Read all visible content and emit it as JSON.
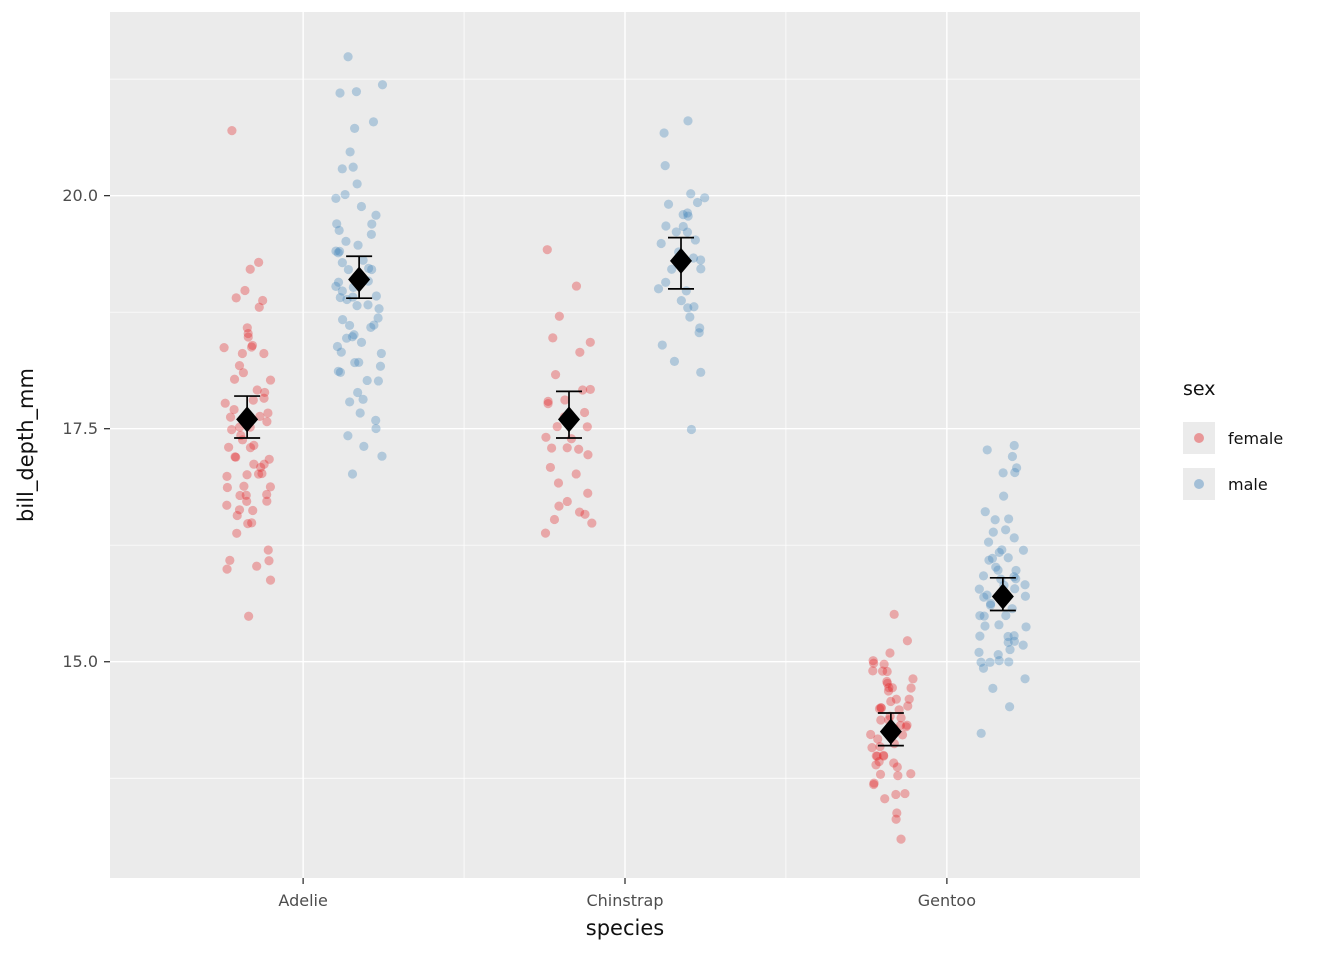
{
  "chart": {
    "ylabel": "bill_depth_mm",
    "xlabel": "species",
    "legend_title": "sex"
  },
  "chart_data": {
    "type": "scatter",
    "title": "",
    "xlabel": "species",
    "ylabel": "bill_depth_mm",
    "categories": [
      "Adelie",
      "Chinstrap",
      "Gentoo"
    ],
    "y_ticks": [
      15.0,
      17.5,
      20.0
    ],
    "y_tick_labels": [
      "15.0",
      "17.5",
      "20.0"
    ],
    "y_minor_ticks": [
      13.75,
      16.25,
      18.75,
      21.25
    ],
    "ylim": [
      12.68,
      21.97
    ],
    "grid": true,
    "panel_background": "#EBEBEB",
    "grid_color": "#FFFFFF",
    "tick_label_color": "#4D4D4D",
    "tick_mark_color": "#333333",
    "point_opacity": 0.32,
    "legend": {
      "title": "sex",
      "position": "right",
      "entries": [
        {
          "label": "female",
          "color": "#E41A1C"
        },
        {
          "label": "male",
          "color": "#377EB8"
        }
      ]
    },
    "colors": {
      "female": "#E41A1C",
      "male": "#377EB8"
    },
    "groups": [
      {
        "species": "Adelie",
        "sex": "female",
        "values": [
          20.7,
          19.3,
          19.2,
          19.0,
          18.9,
          18.9,
          18.8,
          18.6,
          18.5,
          18.5,
          18.4,
          18.4,
          18.4,
          18.3,
          18.3,
          18.2,
          18.1,
          18.0,
          18.0,
          17.9,
          17.9,
          17.8,
          17.8,
          17.8,
          17.7,
          17.7,
          17.6,
          17.6,
          17.6,
          17.5,
          17.5,
          17.5,
          17.4,
          17.4,
          17.3,
          17.3,
          17.3,
          17.2,
          17.2,
          17.2,
          17.1,
          17.1,
          17.1,
          17.0,
          17.0,
          17.0,
          17.0,
          16.9,
          16.9,
          16.9,
          16.8,
          16.8,
          16.8,
          16.7,
          16.7,
          16.7,
          16.6,
          16.6,
          16.6,
          16.5,
          16.5,
          16.4,
          16.2,
          16.1,
          16.1,
          16.0,
          16.0,
          15.9,
          15.5
        ]
      },
      {
        "species": "Adelie",
        "sex": "male",
        "values": [
          21.5,
          21.2,
          21.1,
          21.1,
          20.8,
          20.7,
          20.5,
          20.3,
          20.3,
          20.1,
          20.0,
          20.0,
          19.9,
          19.8,
          19.7,
          19.7,
          19.6,
          19.6,
          19.5,
          19.5,
          19.4,
          19.4,
          19.4,
          19.3,
          19.3,
          19.2,
          19.2,
          19.2,
          19.1,
          19.1,
          19.1,
          19.0,
          19.0,
          19.0,
          18.9,
          18.9,
          18.9,
          18.9,
          18.8,
          18.8,
          18.8,
          18.7,
          18.7,
          18.6,
          18.6,
          18.6,
          18.5,
          18.5,
          18.5,
          18.4,
          18.4,
          18.3,
          18.3,
          18.2,
          18.2,
          18.2,
          18.1,
          18.1,
          18.0,
          18.0,
          17.9,
          17.8,
          17.8,
          17.7,
          17.6,
          17.5,
          17.4,
          17.3,
          17.2,
          17.0
        ]
      },
      {
        "species": "Chinstrap",
        "sex": "female",
        "values": [
          19.4,
          19.0,
          18.7,
          18.5,
          18.4,
          18.3,
          18.1,
          17.9,
          17.9,
          17.8,
          17.8,
          17.8,
          17.7,
          17.6,
          17.6,
          17.5,
          17.5,
          17.4,
          17.4,
          17.3,
          17.3,
          17.3,
          17.2,
          17.1,
          17.0,
          16.9,
          16.8,
          16.7,
          16.7,
          16.6,
          16.6,
          16.5,
          16.5,
          16.4
        ]
      },
      {
        "species": "Chinstrap",
        "sex": "male",
        "values": [
          20.8,
          20.7,
          20.3,
          20.0,
          20.0,
          19.9,
          19.9,
          19.8,
          19.8,
          19.8,
          19.7,
          19.7,
          19.6,
          19.6,
          19.5,
          19.5,
          19.4,
          19.3,
          19.3,
          19.2,
          19.2,
          19.1,
          19.0,
          19.0,
          18.9,
          18.8,
          18.8,
          18.7,
          18.6,
          18.5,
          18.4,
          18.2,
          18.1,
          17.5
        ]
      },
      {
        "species": "Gentoo",
        "sex": "female",
        "values": [
          15.5,
          15.2,
          15.1,
          15.0,
          15.0,
          15.0,
          14.9,
          14.9,
          14.9,
          14.8,
          14.8,
          14.8,
          14.7,
          14.7,
          14.7,
          14.7,
          14.6,
          14.6,
          14.6,
          14.5,
          14.5,
          14.5,
          14.5,
          14.5,
          14.4,
          14.4,
          14.4,
          14.4,
          14.3,
          14.3,
          14.3,
          14.3,
          14.2,
          14.2,
          14.2,
          14.2,
          14.1,
          14.1,
          14.1,
          14.0,
          14.0,
          14.0,
          14.0,
          13.9,
          13.9,
          13.9,
          13.9,
          13.8,
          13.8,
          13.8,
          13.7,
          13.7,
          13.6,
          13.6,
          13.5,
          13.4,
          13.3,
          13.1
        ]
      },
      {
        "species": "Gentoo",
        "sex": "male",
        "values": [
          17.3,
          17.3,
          17.2,
          17.1,
          17.0,
          17.0,
          16.8,
          16.6,
          16.5,
          16.5,
          16.4,
          16.4,
          16.3,
          16.3,
          16.2,
          16.2,
          16.2,
          16.1,
          16.1,
          16.1,
          16.0,
          16.0,
          16.0,
          15.9,
          15.9,
          15.9,
          15.9,
          15.8,
          15.8,
          15.8,
          15.8,
          15.7,
          15.7,
          15.7,
          15.6,
          15.6,
          15.6,
          15.5,
          15.5,
          15.5,
          15.4,
          15.4,
          15.4,
          15.3,
          15.3,
          15.3,
          15.2,
          15.2,
          15.2,
          15.1,
          15.1,
          15.1,
          15.0,
          15.0,
          15.0,
          15.0,
          14.9,
          14.8,
          14.7,
          14.5,
          14.2
        ]
      }
    ],
    "summary": [
      {
        "species": "Adelie",
        "sex": "female",
        "mean": 17.6,
        "low": 17.4,
        "high": 17.85
      },
      {
        "species": "Adelie",
        "sex": "male",
        "mean": 19.1,
        "low": 18.9,
        "high": 19.35
      },
      {
        "species": "Chinstrap",
        "sex": "female",
        "mean": 17.6,
        "low": 17.4,
        "high": 17.9
      },
      {
        "species": "Chinstrap",
        "sex": "male",
        "mean": 19.3,
        "low": 19.0,
        "high": 19.55
      },
      {
        "species": "Gentoo",
        "sex": "female",
        "mean": 14.25,
        "low": 14.1,
        "high": 14.45
      },
      {
        "species": "Gentoo",
        "sex": "male",
        "mean": 15.7,
        "low": 15.55,
        "high": 15.9
      }
    ]
  }
}
